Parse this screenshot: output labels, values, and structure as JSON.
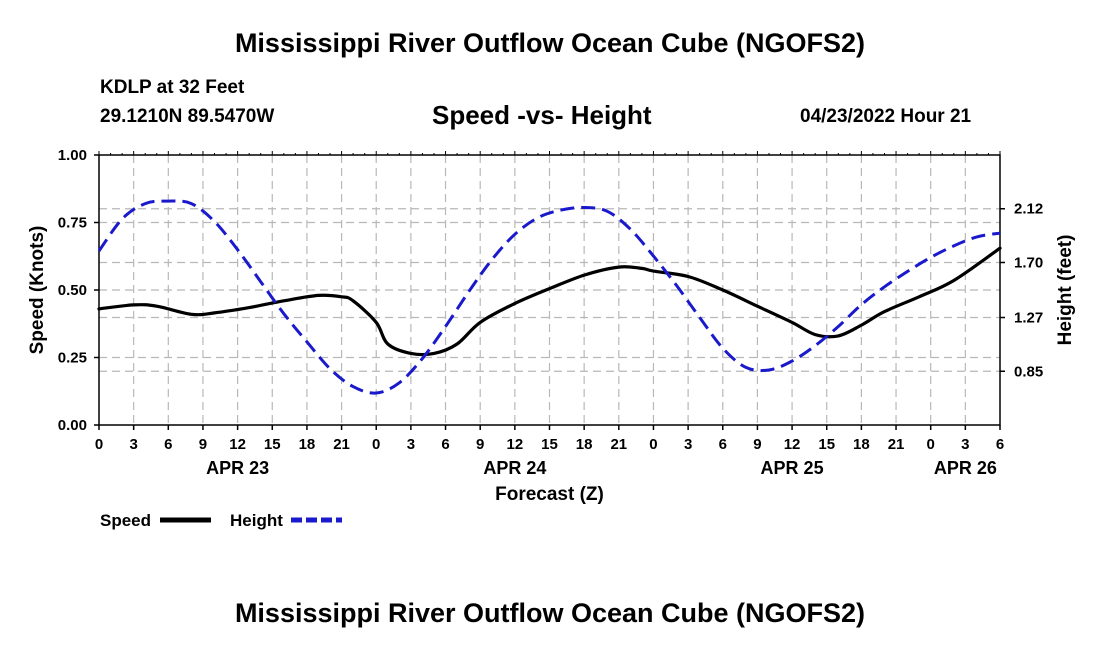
{
  "header": {
    "title": "Mississippi River Outflow Ocean Cube (NGOFS2)",
    "station": "KDLP at 32 Feet",
    "coords": "29.1210N  89.5470W",
    "subtitle": "Speed -vs- Height",
    "datetime": "04/23/2022 Hour 21"
  },
  "footer": {
    "title": "Mississippi River Outflow Ocean Cube (NGOFS2)"
  },
  "colors": {
    "speed": "#000000",
    "height": "#1a1acc",
    "grid": "#b8b8b8"
  },
  "chart_data": {
    "type": "line",
    "title": "Speed -vs- Height",
    "xlabel": "Forecast (Z)",
    "ylabel": "Speed (Knots)",
    "y2label": "Height (feet)",
    "x_unit": "hours since 04/23 00Z",
    "xlim": [
      0,
      78
    ],
    "ylim": [
      0,
      1
    ],
    "y2lim": [
      0.43,
      2.54
    ],
    "x_ticks": [
      0,
      3,
      6,
      9,
      12,
      15,
      18,
      21,
      24,
      27,
      30,
      33,
      36,
      39,
      42,
      45,
      48,
      51,
      54,
      57,
      60,
      63,
      66,
      69,
      72,
      75,
      78
    ],
    "x_tick_labels": [
      "0",
      "3",
      "6",
      "9",
      "12",
      "15",
      "18",
      "21",
      "0",
      "3",
      "6",
      "9",
      "12",
      "15",
      "18",
      "21",
      "0",
      "3",
      "6",
      "9",
      "12",
      "15",
      "18",
      "21",
      "0",
      "3",
      "6"
    ],
    "date_labels": [
      {
        "x": 12,
        "label": "APR 23"
      },
      {
        "x": 36,
        "label": "APR 24"
      },
      {
        "x": 60,
        "label": "APR 25"
      },
      {
        "x": 75,
        "label": "APR 26"
      }
    ],
    "y_ticks": [
      0,
      0.25,
      0.5,
      0.75,
      1.0
    ],
    "y_tick_labels": [
      "0.00",
      "0.25",
      "0.50",
      "0.75",
      "1.00"
    ],
    "y2_ticks": [
      0.85,
      1.27,
      1.7,
      2.12
    ],
    "y2_tick_labels": [
      "0.85",
      "1.27",
      "1.70",
      "2.12"
    ],
    "grid": true,
    "legend_position": "bottom-left",
    "series": [
      {
        "name": "Speed",
        "axis": "left",
        "style": "solid",
        "x": [
          0,
          3,
          5,
          8,
          10,
          13,
          16,
          19,
          21,
          22,
          24,
          25,
          27,
          29,
          31,
          33,
          36,
          39,
          42,
          45,
          47,
          48,
          51,
          54,
          57,
          60,
          62,
          64,
          66,
          68,
          71,
          74,
          78
        ],
        "values": [
          0.43,
          0.445,
          0.44,
          0.41,
          0.415,
          0.435,
          0.46,
          0.48,
          0.475,
          0.46,
          0.38,
          0.3,
          0.265,
          0.265,
          0.3,
          0.38,
          0.45,
          0.505,
          0.555,
          0.585,
          0.58,
          0.57,
          0.55,
          0.5,
          0.44,
          0.38,
          0.335,
          0.33,
          0.37,
          0.42,
          0.475,
          0.535,
          0.655
        ]
      },
      {
        "name": "Height",
        "axis": "right",
        "style": "dashed",
        "x": [
          0,
          2,
          4,
          6,
          8,
          10,
          12,
          14,
          16,
          18,
          20,
          22,
          24,
          26,
          28,
          30,
          32,
          34,
          36,
          38,
          40,
          42,
          44,
          46,
          48,
          50,
          52,
          54,
          56,
          58,
          60,
          62,
          64,
          66,
          68,
          70,
          72,
          74,
          76,
          78
        ],
        "values": [
          1.79,
          2.04,
          2.16,
          2.18,
          2.16,
          2.02,
          1.8,
          1.55,
          1.3,
          1.08,
          0.87,
          0.73,
          0.68,
          0.76,
          0.95,
          1.2,
          1.47,
          1.72,
          1.92,
          2.05,
          2.11,
          2.13,
          2.1,
          1.96,
          1.75,
          1.52,
          1.27,
          1.03,
          0.88,
          0.86,
          0.93,
          1.05,
          1.2,
          1.37,
          1.51,
          1.63,
          1.74,
          1.83,
          1.9,
          1.93
        ]
      }
    ],
    "legend": [
      {
        "name": "Speed",
        "style": "solid"
      },
      {
        "name": "Height",
        "style": "dashed"
      }
    ]
  }
}
